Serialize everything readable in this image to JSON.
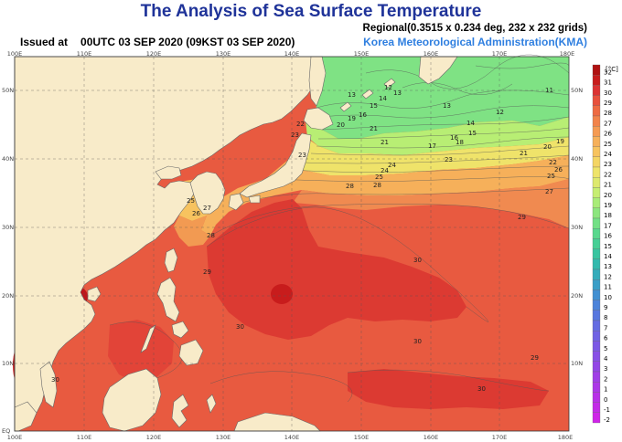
{
  "header": {
    "title": "The Analysis of Sea Surface Temperature",
    "issued_label": "Issued at",
    "issued_time": "00UTC 03 SEP 2020 (09KST 03 SEP 2020)",
    "regional": "Regional(0.3515 x 0.234 deg, 232 x 232 grids)",
    "agency": "Korea Meteorological Administration(KMA)"
  },
  "map": {
    "lon_labels": [
      "100E",
      "110E",
      "120E",
      "130E",
      "140E",
      "150E",
      "160E",
      "170E",
      "180E"
    ],
    "lat_labels": [
      "EQ",
      "10N",
      "20N",
      "30N",
      "40N",
      "50N"
    ],
    "lat_labels_right": [
      "10N",
      "20N",
      "30N",
      "40N",
      "50N"
    ],
    "isotherm_labels": [
      "11",
      "12",
      "13",
      "14",
      "15",
      "16",
      "17",
      "18",
      "19",
      "20",
      "21",
      "22",
      "23",
      "24",
      "25",
      "26",
      "27",
      "28",
      "29",
      "30",
      "30",
      "30",
      "30",
      "30",
      "29",
      "29",
      "28",
      "28",
      "27",
      "26",
      "25",
      "25",
      "24",
      "23",
      "23",
      "22",
      "21",
      "21",
      "20",
      "19",
      "16",
      "15",
      "14",
      "13",
      "13",
      "12"
    ],
    "colors": {
      "land": "#f8ebc9",
      "title": "#1f3399",
      "agency": "#2f7fe0"
    }
  },
  "colorbar": {
    "unit": "[°C]",
    "labels": [
      "32",
      "31",
      "30",
      "29",
      "28",
      "27",
      "26",
      "25",
      "24",
      "23",
      "22",
      "21",
      "20",
      "19",
      "18",
      "17",
      "16",
      "15",
      "14",
      "13",
      "12",
      "11",
      "10",
      "9",
      "8",
      "7",
      "6",
      "5",
      "4",
      "3",
      "2",
      "1",
      "0",
      "-1",
      "-2"
    ],
    "colors": [
      "#b01212",
      "#c81c1c",
      "#dc3232",
      "#e8503c",
      "#ee6a42",
      "#f2834a",
      "#f59a52",
      "#f6b05a",
      "#f7c35f",
      "#f4d564",
      "#eee46a",
      "#dde96e",
      "#c6ee72",
      "#a8ec78",
      "#8ce67e",
      "#72e085",
      "#58d88d",
      "#46cf95",
      "#38c5a0",
      "#32b9ad",
      "#34acbb",
      "#3a9ec7",
      "#4290d2",
      "#4c83da",
      "#5877df",
      "#646ce2",
      "#7062e4",
      "#7c58e5",
      "#884fe6",
      "#9346e6",
      "#a03ee7",
      "#ac37e8",
      "#b830e8",
      "#c32ae8",
      "#cf24e8"
    ]
  }
}
